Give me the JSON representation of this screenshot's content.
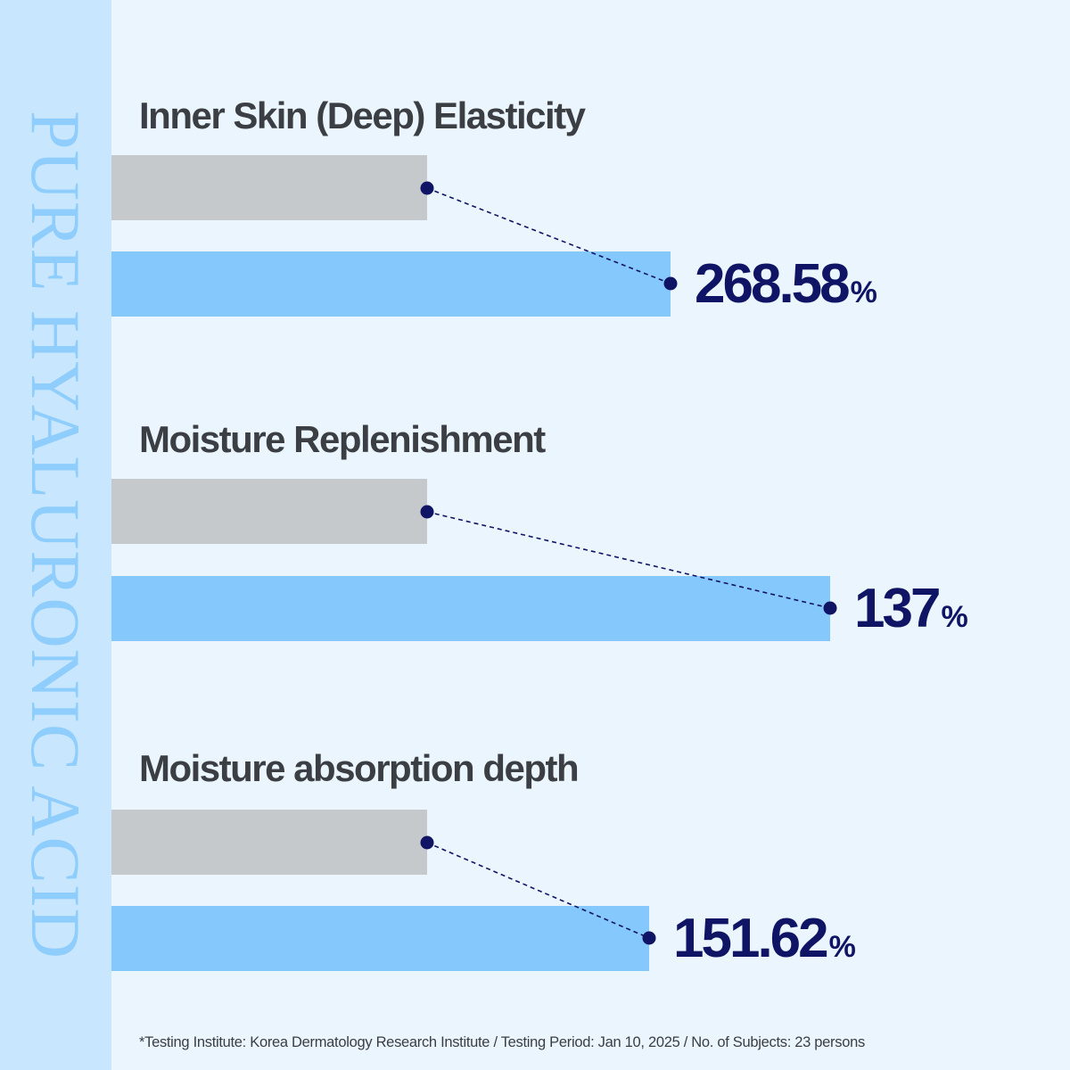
{
  "side_label": "PURE HYALURONIC ACID",
  "colors": {
    "baseline_bar": "#c5c9cc",
    "result_bar": "#85c8fc",
    "value_text": "#0f1464",
    "sidebar": "#c8e6fd"
  },
  "chart_data": {
    "type": "bar",
    "orientation": "horizontal",
    "categories": [
      "Inner Skin (Deep) Elasticity",
      "Moisture Replenishment",
      "Moisture absorption depth"
    ],
    "series": [
      {
        "values": [
          100,
          100,
          100
        ]
      },
      {
        "values": [
          268.58,
          137,
          151.62
        ]
      }
    ],
    "value_labels": [
      "268.58",
      "137",
      "151.62"
    ],
    "unit": "%"
  },
  "footnote": "*Testing Institute: Korea Dermatology Research Institute / Testing Period: Jan 10, 2025 / No. of Subjects: 23 persons"
}
